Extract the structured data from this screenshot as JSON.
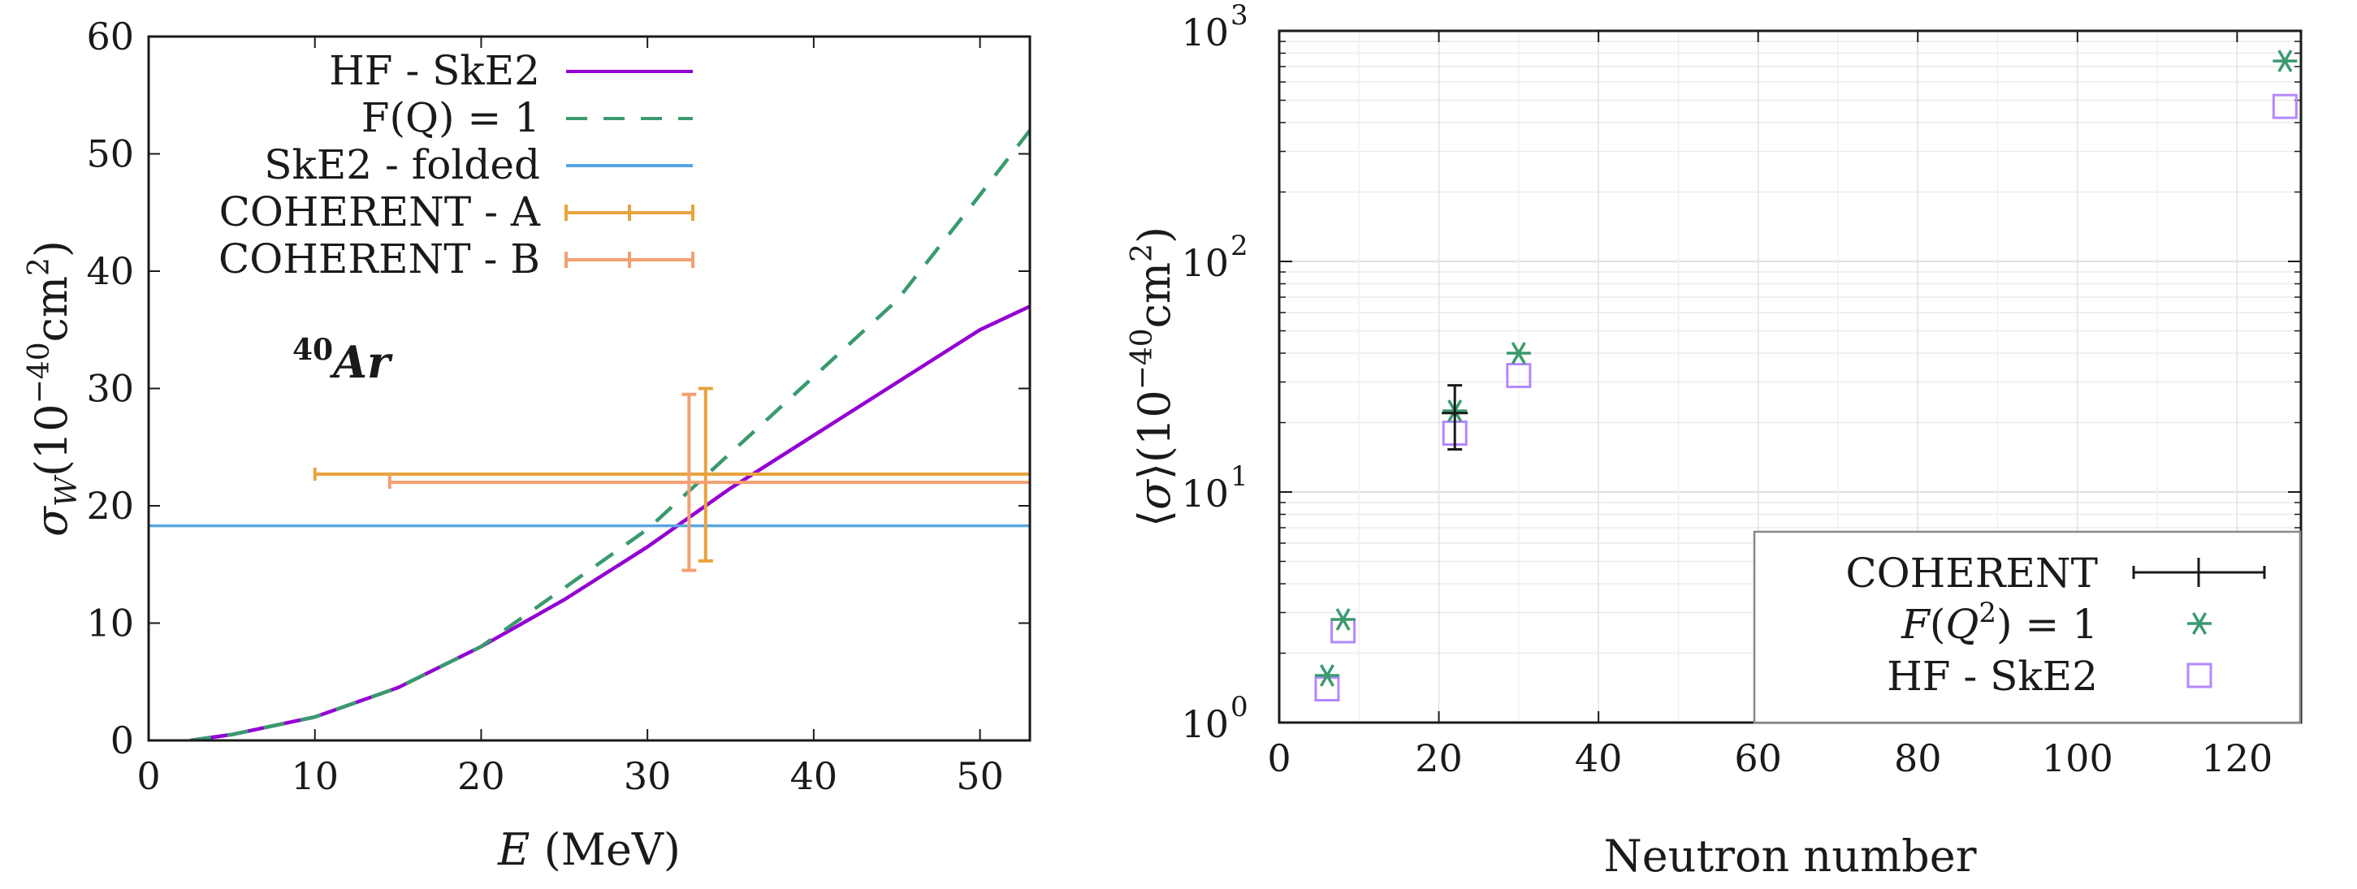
{
  "chart_data": [
    {
      "type": "line",
      "xlabel": "E (MeV)",
      "ylabel": "σW(10−40cm2)",
      "xlim": [
        0,
        53
      ],
      "ylim": [
        0,
        60
      ],
      "xticks": [
        "0",
        "10",
        "20",
        "30",
        "40",
        "50"
      ],
      "yticks": [
        "0",
        "10",
        "20",
        "30",
        "40",
        "50",
        "60"
      ],
      "annotation": "40Ar",
      "legend_position": "top-left",
      "series": [
        {
          "name": "HF - SkE2",
          "style": "solid",
          "color": "#9400d3",
          "x": [
            2.5,
            5,
            10,
            15,
            20,
            25,
            30,
            35,
            40,
            45,
            50,
            53
          ],
          "y": [
            0,
            0.5,
            2,
            4.5,
            8,
            12,
            16.5,
            21.5,
            26,
            30.5,
            35,
            37
          ]
        },
        {
          "name": "F(Q) = 1",
          "style": "dashed",
          "color": "#3a9a6e",
          "x": [
            2.5,
            5,
            10,
            15,
            20,
            25,
            30,
            35,
            40,
            45,
            50,
            53
          ],
          "y": [
            0,
            0.5,
            2,
            4.5,
            8,
            13,
            18,
            24.5,
            31,
            37.5,
            46.5,
            52
          ]
        },
        {
          "name": "SkE2 - folded",
          "style": "solid",
          "color": "#5aa5e0",
          "x": [
            0,
            53
          ],
          "y": [
            18.3,
            18.3
          ]
        }
      ],
      "errorbars": [
        {
          "name": "COHERENT - A",
          "color": "#e8a33d",
          "x": 33.5,
          "y": 22.7,
          "xerr": [
            10,
            53
          ],
          "yerr": [
            15.3,
            30
          ]
        },
        {
          "name": "COHERENT - B",
          "color": "#f2a070",
          "x": 32.5,
          "y": 22,
          "xerr": [
            14.5,
            53
          ],
          "yerr": [
            14.5,
            29.5
          ]
        }
      ]
    },
    {
      "type": "scatter",
      "xlabel": "Neutron number",
      "ylabel": "⟨σ⟩(10−40cm2)",
      "yscale": "log",
      "xlim": [
        0,
        128
      ],
      "ylim": [
        1,
        1000
      ],
      "xticks": [
        "0",
        "20",
        "40",
        "60",
        "80",
        "100",
        "120"
      ],
      "yticks": [
        {
          "base": "10",
          "exp": "0",
          "value": 1
        },
        {
          "base": "10",
          "exp": "1",
          "value": 10
        },
        {
          "base": "10",
          "exp": "2",
          "value": 100
        },
        {
          "base": "10",
          "exp": "3",
          "value": 1000
        }
      ],
      "legend_position": "bottom-right",
      "series": [
        {
          "name": "COHERENT",
          "marker": "errorbar",
          "color": "#1a1a1a",
          "x": [
            22
          ],
          "y": [
            22
          ],
          "yerr": [
            [
              15.3,
              29
            ]
          ]
        },
        {
          "name": "F(Q2) = 1",
          "marker": "asterisk",
          "color": "#3a9a6e",
          "x": [
            6,
            8,
            22,
            30,
            126
          ],
          "y": [
            1.6,
            2.8,
            22.5,
            40,
            740
          ]
        },
        {
          "name": "HF - SkE2",
          "marker": "square",
          "color": "#b388ff",
          "x": [
            6,
            8,
            22,
            30,
            126
          ],
          "y": [
            1.4,
            2.5,
            18,
            32,
            470
          ]
        }
      ]
    }
  ]
}
